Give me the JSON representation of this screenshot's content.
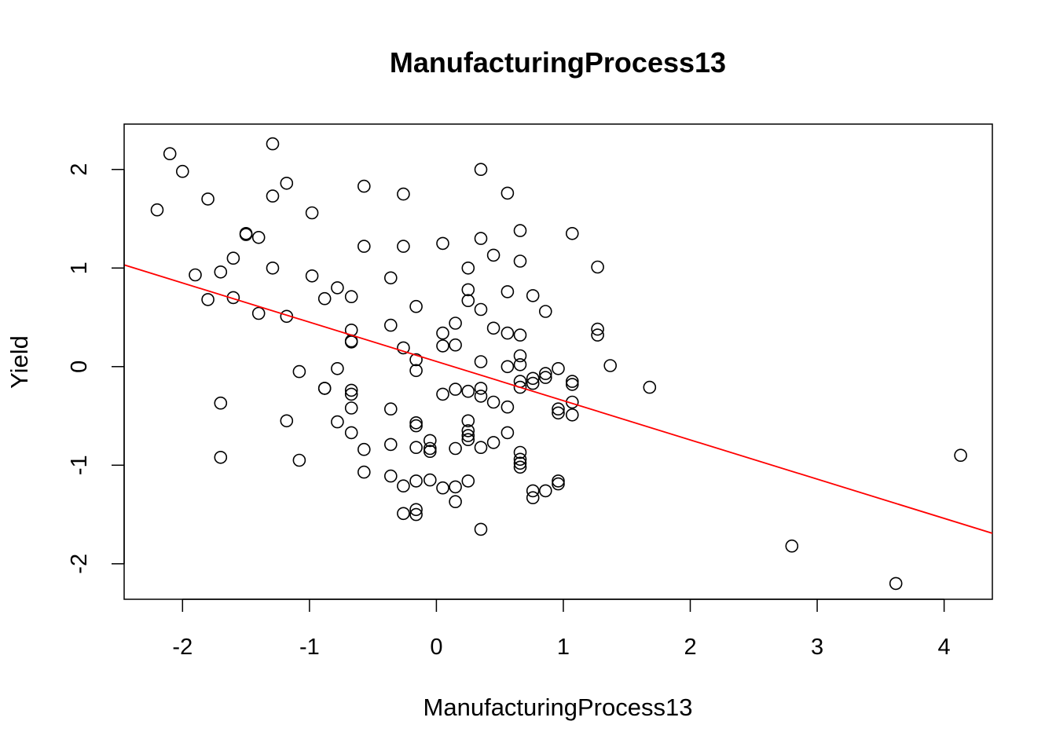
{
  "chart_data": {
    "type": "scatter",
    "title": "ManufacturingProcess13",
    "xlabel": "ManufacturingProcess13",
    "ylabel": "Yield",
    "xlim": [
      -2.46,
      4.38
    ],
    "ylim": [
      -2.36,
      2.46
    ],
    "xticks": [
      -2,
      -1,
      0,
      1,
      2,
      3,
      4
    ],
    "yticks": [
      -2,
      -1,
      0,
      1,
      2
    ],
    "xtick_labels": [
      "-2",
      "-1",
      "0",
      "1",
      "2",
      "3",
      "4"
    ],
    "ytick_labels": [
      "-2",
      "-1",
      "0",
      "1",
      "2"
    ],
    "point_color": "#000000",
    "line_color": "#ff0000",
    "regression_line": {
      "intercept": 0.0526,
      "slope": -0.398
    },
    "points": [
      {
        "x": -2.2,
        "y": 1.59
      },
      {
        "x": -2.1,
        "y": 2.16
      },
      {
        "x": -2.0,
        "y": 1.98
      },
      {
        "x": -1.9,
        "y": 0.93
      },
      {
        "x": -1.8,
        "y": 1.7
      },
      {
        "x": -1.8,
        "y": 0.68
      },
      {
        "x": -1.7,
        "y": 0.96
      },
      {
        "x": -1.7,
        "y": -0.37
      },
      {
        "x": -1.7,
        "y": -0.92
      },
      {
        "x": -1.6,
        "y": 1.1
      },
      {
        "x": -1.6,
        "y": 0.7
      },
      {
        "x": -1.5,
        "y": 1.35
      },
      {
        "x": -1.5,
        "y": 1.34
      },
      {
        "x": -1.4,
        "y": 1.31
      },
      {
        "x": -1.4,
        "y": 0.54
      },
      {
        "x": -1.29,
        "y": 2.26
      },
      {
        "x": -1.29,
        "y": 1.73
      },
      {
        "x": -1.29,
        "y": 1.0
      },
      {
        "x": -1.18,
        "y": 1.86
      },
      {
        "x": -1.18,
        "y": 0.51
      },
      {
        "x": -1.18,
        "y": -0.55
      },
      {
        "x": -1.08,
        "y": -0.05
      },
      {
        "x": -1.08,
        "y": -0.95
      },
      {
        "x": -0.98,
        "y": 1.56
      },
      {
        "x": -0.98,
        "y": 0.92
      },
      {
        "x": -0.88,
        "y": 0.69
      },
      {
        "x": -0.88,
        "y": -0.22
      },
      {
        "x": -0.88,
        "y": -0.22
      },
      {
        "x": -0.78,
        "y": 0.8
      },
      {
        "x": -0.78,
        "y": -0.02
      },
      {
        "x": -0.78,
        "y": -0.56
      },
      {
        "x": -0.67,
        "y": 0.71
      },
      {
        "x": -0.67,
        "y": 0.37
      },
      {
        "x": -0.67,
        "y": 0.26
      },
      {
        "x": -0.67,
        "y": 0.25
      },
      {
        "x": -0.67,
        "y": -0.24
      },
      {
        "x": -0.67,
        "y": -0.28
      },
      {
        "x": -0.67,
        "y": -0.42
      },
      {
        "x": -0.67,
        "y": -0.67
      },
      {
        "x": -0.57,
        "y": 1.83
      },
      {
        "x": -0.57,
        "y": 1.22
      },
      {
        "x": -0.57,
        "y": -0.84
      },
      {
        "x": -0.57,
        "y": -1.07
      },
      {
        "x": -0.36,
        "y": 0.9
      },
      {
        "x": -0.36,
        "y": 0.42
      },
      {
        "x": -0.36,
        "y": -0.43
      },
      {
        "x": -0.36,
        "y": -0.79
      },
      {
        "x": -0.36,
        "y": -1.11
      },
      {
        "x": -0.26,
        "y": 1.75
      },
      {
        "x": -0.26,
        "y": 1.22
      },
      {
        "x": -0.26,
        "y": 0.19
      },
      {
        "x": -0.26,
        "y": -1.21
      },
      {
        "x": -0.26,
        "y": -1.49
      },
      {
        "x": -0.16,
        "y": 0.61
      },
      {
        "x": -0.16,
        "y": 0.07
      },
      {
        "x": -0.16,
        "y": -0.04
      },
      {
        "x": -0.16,
        "y": -0.57
      },
      {
        "x": -0.16,
        "y": -0.6
      },
      {
        "x": -0.16,
        "y": -0.82
      },
      {
        "x": -0.16,
        "y": -1.16
      },
      {
        "x": -0.16,
        "y": -1.45
      },
      {
        "x": -0.16,
        "y": -1.5
      },
      {
        "x": -0.05,
        "y": -0.75
      },
      {
        "x": -0.05,
        "y": -0.83
      },
      {
        "x": -0.05,
        "y": -0.86
      },
      {
        "x": -0.05,
        "y": -1.15
      },
      {
        "x": 0.05,
        "y": 1.25
      },
      {
        "x": 0.05,
        "y": 0.34
      },
      {
        "x": 0.05,
        "y": 0.21
      },
      {
        "x": 0.05,
        "y": -0.28
      },
      {
        "x": 0.05,
        "y": -1.23
      },
      {
        "x": 0.15,
        "y": 0.44
      },
      {
        "x": 0.15,
        "y": 0.22
      },
      {
        "x": 0.15,
        "y": -0.23
      },
      {
        "x": 0.15,
        "y": -0.83
      },
      {
        "x": 0.15,
        "y": -1.22
      },
      {
        "x": 0.15,
        "y": -1.37
      },
      {
        "x": 0.25,
        "y": 1.0
      },
      {
        "x": 0.25,
        "y": 0.78
      },
      {
        "x": 0.25,
        "y": 0.67
      },
      {
        "x": 0.25,
        "y": -0.25
      },
      {
        "x": 0.25,
        "y": -0.55
      },
      {
        "x": 0.25,
        "y": -0.65
      },
      {
        "x": 0.25,
        "y": -0.7
      },
      {
        "x": 0.25,
        "y": -0.74
      },
      {
        "x": 0.25,
        "y": -1.16
      },
      {
        "x": 0.35,
        "y": 2.0
      },
      {
        "x": 0.35,
        "y": 1.3
      },
      {
        "x": 0.35,
        "y": 0.58
      },
      {
        "x": 0.35,
        "y": 0.05
      },
      {
        "x": 0.35,
        "y": -0.22
      },
      {
        "x": 0.35,
        "y": -0.3
      },
      {
        "x": 0.35,
        "y": -0.82
      },
      {
        "x": 0.35,
        "y": -1.65
      },
      {
        "x": 0.45,
        "y": 1.13
      },
      {
        "x": 0.45,
        "y": 0.39
      },
      {
        "x": 0.45,
        "y": -0.36
      },
      {
        "x": 0.45,
        "y": -0.77
      },
      {
        "x": 0.56,
        "y": 1.76
      },
      {
        "x": 0.56,
        "y": 0.76
      },
      {
        "x": 0.56,
        "y": 0.34
      },
      {
        "x": 0.56,
        "y": 0.0
      },
      {
        "x": 0.56,
        "y": -0.41
      },
      {
        "x": 0.56,
        "y": -0.67
      },
      {
        "x": 0.66,
        "y": 1.38
      },
      {
        "x": 0.66,
        "y": 1.07
      },
      {
        "x": 0.66,
        "y": 0.32
      },
      {
        "x": 0.66,
        "y": 0.11
      },
      {
        "x": 0.66,
        "y": 0.02
      },
      {
        "x": 0.66,
        "y": -0.15
      },
      {
        "x": 0.66,
        "y": -0.21
      },
      {
        "x": 0.66,
        "y": -0.87
      },
      {
        "x": 0.66,
        "y": -0.94
      },
      {
        "x": 0.66,
        "y": -0.98
      },
      {
        "x": 0.66,
        "y": -1.02
      },
      {
        "x": 0.76,
        "y": 0.72
      },
      {
        "x": 0.76,
        "y": -0.12
      },
      {
        "x": 0.76,
        "y": -0.17
      },
      {
        "x": 0.76,
        "y": -1.26
      },
      {
        "x": 0.76,
        "y": -1.33
      },
      {
        "x": 0.86,
        "y": 0.56
      },
      {
        "x": 0.86,
        "y": -0.07
      },
      {
        "x": 0.86,
        "y": -0.11
      },
      {
        "x": 0.86,
        "y": -1.26
      },
      {
        "x": 0.96,
        "y": -0.02
      },
      {
        "x": 0.96,
        "y": -0.43
      },
      {
        "x": 0.96,
        "y": -0.47
      },
      {
        "x": 0.96,
        "y": -1.16
      },
      {
        "x": 0.96,
        "y": -1.19
      },
      {
        "x": 1.07,
        "y": 1.35
      },
      {
        "x": 1.07,
        "y": -0.15
      },
      {
        "x": 1.07,
        "y": -0.18
      },
      {
        "x": 1.07,
        "y": -0.36
      },
      {
        "x": 1.07,
        "y": -0.49
      },
      {
        "x": 1.27,
        "y": 1.01
      },
      {
        "x": 1.27,
        "y": 0.38
      },
      {
        "x": 1.27,
        "y": 0.32
      },
      {
        "x": 1.37,
        "y": 0.01
      },
      {
        "x": 1.68,
        "y": -0.21
      },
      {
        "x": 2.8,
        "y": -1.82
      },
      {
        "x": 3.62,
        "y": -2.2
      },
      {
        "x": 4.13,
        "y": -0.9
      }
    ]
  }
}
